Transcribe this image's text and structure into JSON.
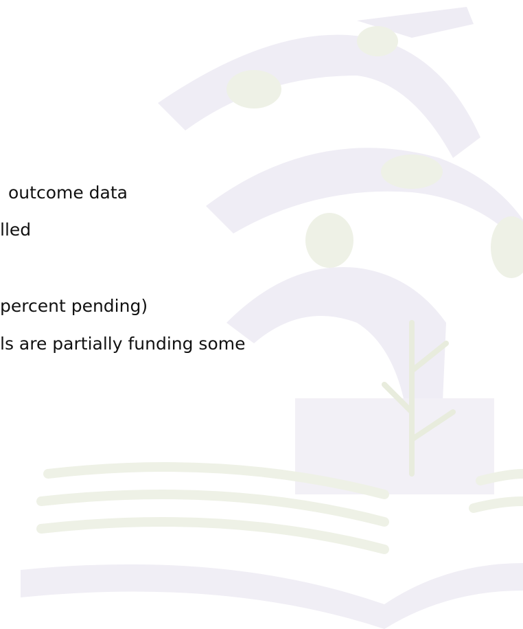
{
  "lines": [
    "outcome data",
    "lled",
    "percent pending)",
    "ls are partially funding some"
  ]
}
